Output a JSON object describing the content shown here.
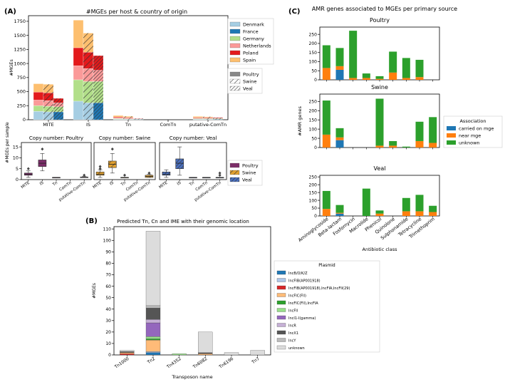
{
  "panel_labels": {
    "a": "(A)",
    "b": "(B)",
    "c": "(C)"
  },
  "colors": {
    "countries": {
      "Denmark": "#a6cee3",
      "France": "#1f78b4",
      "Germany": "#b2df8a",
      "Netherlands": "#fb9a99",
      "Poland": "#e31a1c",
      "Spain": "#fdbf6f"
    },
    "hosts": {
      "Poultry": "#7b2d68",
      "Swine": "#e0a030",
      "Veal": "#4a70c0"
    },
    "assoc": {
      "carried on mge": "#1f77b4",
      "near mge": "#ff7f0e",
      "unknown": "#2ca02c"
    },
    "axis": "#000000",
    "box_outline": "#333333"
  },
  "chart_data": [
    {
      "id": "A_main",
      "type": "bar",
      "title": "#MGEs per host & country of origin",
      "ylabel": "#MGEs",
      "ylim": [
        0,
        1850
      ],
      "yticks": [
        0,
        250,
        500,
        750,
        1000,
        1250,
        1500,
        1750
      ],
      "categories": [
        "MITE",
        "IS",
        "Tn",
        "ComTn",
        "putative-ComTn"
      ],
      "hosts": [
        "Poultry",
        "Swine",
        "Veal"
      ],
      "countries": [
        "Denmark",
        "France",
        "Germany",
        "Netherlands",
        "Poland",
        "Spain"
      ],
      "values": {
        "MITE": {
          "Poultry": [
            150,
            0,
            100,
            100,
            140,
            150
          ],
          "Swine": [
            140,
            0,
            100,
            100,
            140,
            150
          ],
          "Veal": [
            0,
            140,
            90,
            70,
            80,
            0
          ]
        },
        "IS": {
          "Poultry": [
            330,
            0,
            380,
            250,
            320,
            490
          ],
          "Swine": [
            300,
            0,
            380,
            230,
            290,
            340
          ],
          "Veal": [
            0,
            300,
            380,
            200,
            260,
            0
          ]
        },
        "Tn": {
          "Poultry": [
            10,
            0,
            10,
            15,
            15,
            25
          ],
          "Swine": [
            8,
            0,
            10,
            12,
            12,
            20
          ],
          "Veal": [
            0,
            8,
            5,
            6,
            6,
            0
          ]
        },
        "ComTn": {
          "Poultry": [
            0,
            0,
            0,
            0,
            0,
            0
          ],
          "Swine": [
            0,
            0,
            0,
            0,
            0,
            0
          ],
          "Veal": [
            0,
            0,
            0,
            0,
            0,
            0
          ]
        },
        "putative-ComTn": {
          "Poultry": [
            10,
            0,
            10,
            10,
            10,
            20
          ],
          "Swine": [
            10,
            0,
            10,
            10,
            10,
            15
          ],
          "Veal": [
            0,
            10,
            10,
            10,
            10,
            0
          ]
        }
      },
      "legend_countries": [
        "Denmark",
        "France",
        "Germany",
        "Netherlands",
        "Poland",
        "Spain"
      ],
      "legend_hosts": [
        "Poultry",
        "Swine",
        "Veal"
      ]
    },
    {
      "id": "A_box",
      "type": "box",
      "ylabel": "#MGEs per sample",
      "ylim": [
        0,
        17
      ],
      "yticks": [
        0,
        5,
        10,
        15
      ],
      "categories": [
        "MITE",
        "IS",
        "Tn",
        "ComTn",
        "putative-ComTn"
      ],
      "legend": [
        "Poultry",
        "Swine",
        "Veal"
      ],
      "panels": [
        {
          "title": "Copy number: Poultry",
          "host": "Poultry",
          "boxes": [
            [
              1,
              2,
              2.5,
              3,
              4
            ],
            [
              4,
              6,
              7.5,
              9,
              12
            ],
            [
              1,
              1,
              1,
              1,
              1
            ],
            null,
            [
              1,
              1,
              1,
              1.2,
              1.5
            ]
          ],
          "outliers": [
            [
              5
            ],
            [
              14
            ],
            [],
            [],
            [
              2
            ]
          ]
        },
        {
          "title": "Copy number: Swine",
          "host": "Swine",
          "boxes": [
            [
              1,
              2,
              2.5,
              3.5,
              4.5
            ],
            [
              3,
              5.5,
              7,
              8.5,
              12
            ],
            [
              1,
              1,
              1,
              1,
              1
            ],
            null,
            [
              1,
              1,
              1.5,
              2,
              2.5
            ]
          ],
          "outliers": [
            [
              5,
              6
            ],
            [
              14
            ],
            [
              2
            ],
            [],
            [
              3
            ]
          ]
        },
        {
          "title": "Copy number: Veal",
          "host": "Veal",
          "boxes": [
            [
              1,
              2,
              2.5,
              3.5,
              4.5
            ],
            [
              2,
              5,
              7.5,
              9.5,
              15
            ],
            [
              1,
              1,
              1,
              1,
              1
            ],
            [
              1,
              1,
              1,
              1,
              1
            ],
            [
              1,
              1,
              1,
              1,
              1
            ]
          ],
          "outliers": [
            [],
            [],
            [],
            [],
            [
              2,
              3
            ]
          ]
        }
      ]
    },
    {
      "id": "B",
      "type": "bar",
      "title": "Predicted Tn, Cn and IME with their genomic location",
      "xlabel": "Transposon name",
      "ylabel": "#MGEs",
      "ylim": [
        0,
        112
      ],
      "yticks": [
        0,
        10,
        20,
        30,
        40,
        50,
        60,
        70,
        80,
        90,
        100,
        110
      ],
      "categories": [
        "Tn1000",
        "Tn2",
        "Tn4352",
        "Tn6082",
        "Tn6196",
        "Tn7"
      ],
      "legend_title": "Plasmid",
      "series": [
        {
          "name": "IncB/O/K/Z",
          "color": "#1f77b4",
          "values": [
            0,
            2,
            0,
            0,
            0,
            0
          ]
        },
        {
          "name": "IncFIB(AP001918)",
          "color": "#aec7e8",
          "values": [
            0,
            1,
            0,
            0,
            0,
            0
          ]
        },
        {
          "name": "IncFIB(AP001918),IncFIA,IncFII(29)",
          "color": "#d62728",
          "values": [
            1,
            0,
            0,
            0,
            0,
            0
          ]
        },
        {
          "name": "IncFIC(FII)",
          "color": "#ffbb78",
          "values": [
            1,
            10,
            0,
            1,
            0,
            0
          ]
        },
        {
          "name": "IncFIC(FII),IncFIA",
          "color": "#2ca02c",
          "values": [
            0,
            1,
            0,
            0,
            0,
            0
          ]
        },
        {
          "name": "IncFII",
          "color": "#98df8a",
          "values": [
            0,
            2,
            1,
            0,
            0,
            0
          ]
        },
        {
          "name": "IncI1-I(gamma)",
          "color": "#9467bd",
          "values": [
            0,
            12,
            0,
            0,
            0,
            0
          ]
        },
        {
          "name": "IncR",
          "color": "#c5b0d5",
          "values": [
            0,
            3,
            0,
            0,
            0,
            0
          ]
        },
        {
          "name": "IncX1",
          "color": "#555555",
          "values": [
            1,
            10,
            0,
            1,
            0,
            0
          ]
        },
        {
          "name": "IncY",
          "color": "#bbbbbb",
          "values": [
            0,
            2,
            0,
            0,
            0,
            0
          ]
        },
        {
          "name": "unknown",
          "color": "#dcdcdc",
          "values": [
            1,
            65,
            0,
            18,
            2,
            4
          ]
        }
      ]
    },
    {
      "id": "C",
      "type": "bar",
      "title": "AMR genes associated to MGEs per primary source",
      "xlabel": "Antibiotic class",
      "ylabel": "#AMR genes",
      "categories": [
        "Aminoglycoside",
        "Beta-lactam",
        "Fosfomycin",
        "Macrolide",
        "Phenicol",
        "Quinolone",
        "Sulphonamide",
        "Tetracycline",
        "Trimethoprim"
      ],
      "legend_title": "Association",
      "legend": [
        "carried on mge",
        "near mge",
        "unknown"
      ],
      "panels": [
        {
          "title": "Poultry",
          "ylim": [
            0,
            290
          ],
          "yticks": [
            0,
            50,
            100,
            150,
            200,
            250
          ],
          "series": [
            {
              "name": "carried on mge",
              "values": [
                0,
                55,
                0,
                0,
                0,
                0,
                0,
                0,
                0
              ]
            },
            {
              "name": "near mge",
              "values": [
                65,
                20,
                10,
                10,
                5,
                40,
                10,
                15,
                0
              ]
            },
            {
              "name": "unknown",
              "values": [
                125,
                100,
                260,
                25,
                15,
                115,
                110,
                95,
                0
              ]
            }
          ]
        },
        {
          "title": "Swine",
          "ylim": [
            0,
            290
          ],
          "yticks": [
            0,
            50,
            100,
            150,
            200,
            250
          ],
          "series": [
            {
              "name": "carried on mge",
              "values": [
                0,
                40,
                0,
                0,
                0,
                0,
                0,
                0,
                0
              ]
            },
            {
              "name": "near mge",
              "values": [
                70,
                15,
                0,
                0,
                10,
                10,
                0,
                35,
                25
              ]
            },
            {
              "name": "unknown",
              "values": [
                185,
                50,
                0,
                0,
                255,
                25,
                5,
                105,
                140
              ]
            }
          ]
        },
        {
          "title": "Veal",
          "ylim": [
            0,
            260
          ],
          "yticks": [
            0,
            50,
            100,
            150,
            200,
            250
          ],
          "series": [
            {
              "name": "carried on mge",
              "values": [
                0,
                15,
                0,
                0,
                0,
                0,
                0,
                0,
                0
              ]
            },
            {
              "name": "near mge",
              "values": [
                45,
                5,
                0,
                0,
                15,
                0,
                30,
                30,
                25
              ]
            },
            {
              "name": "unknown",
              "values": [
                115,
                50,
                0,
                175,
                20,
                0,
                85,
                105,
                40
              ]
            }
          ]
        }
      ]
    }
  ]
}
